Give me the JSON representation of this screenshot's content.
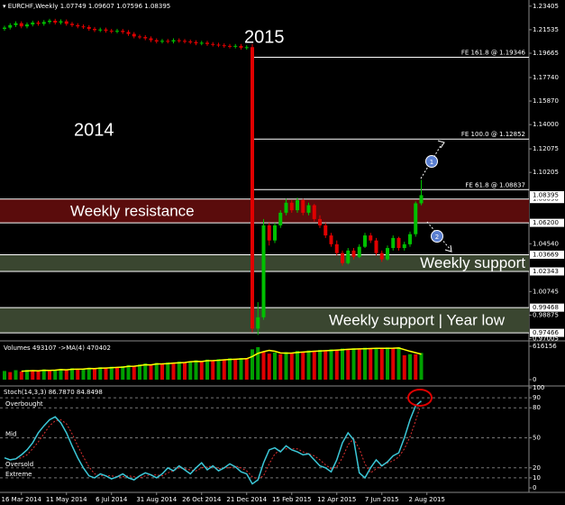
{
  "chart_data": [
    {
      "type": "candlestick",
      "title": "EURCHF,Weekly",
      "up_color": "#00c000",
      "down_color": "#e00000",
      "ylim": [
        0.969,
        1.2375
      ],
      "yticks": [
        1.23405,
        1.21535,
        1.19665,
        {
          "value": 1.1774,
          "label": "1.17740"
        },
        {
          "value": 1.1587,
          "label": "1.15870"
        },
        {
          "value": 1.14,
          "label": "1.14000"
        },
        1.12075,
        1.10205,
        {
          "value": 1.0454,
          "label": "1.04540"
        },
        1.00745,
        0.98875,
        0.97005
      ],
      "levels": [
        {
          "value": 1.0809,
          "label": "1.08090"
        },
        {
          "value": 1.062,
          "label": "1.06200"
        },
        1.03669,
        1.02343,
        0.99468,
        0.97466
      ],
      "fibo": [
        {
          "label": "FE 161.8 @ 1.19346",
          "value": 1.19346
        },
        {
          "label": "FE 100.0 @ 1.12852",
          "value": 1.12852
        },
        {
          "label": "FE 61.8 @ 1.08837",
          "value": 1.08837
        }
      ],
      "zones": [
        {
          "label": "Weekly resistance",
          "from": 1.062,
          "to": 1.0809,
          "color": "#5a0c0c"
        },
        {
          "label": "Weekly support",
          "from": 1.02343,
          "to": 1.03669,
          "color": "#3a4630"
        },
        {
          "label": "Weekly support | Year low",
          "from": 0.97466,
          "to": 0.99468,
          "color": "#3a4630"
        }
      ],
      "annotations": [
        "2014",
        "2015",
        "1",
        "2"
      ],
      "ohlc": [
        [
          1.216,
          1.2185,
          1.2145,
          1.217
        ],
        [
          1.217,
          1.2205,
          1.2155,
          1.219
        ],
        [
          1.219,
          1.222,
          1.2175,
          1.2205
        ],
        [
          1.2205,
          1.222,
          1.2165,
          1.218
        ],
        [
          1.218,
          1.221,
          1.2165,
          1.2195
        ],
        [
          1.2195,
          1.2225,
          1.218,
          1.221
        ],
        [
          1.221,
          1.2225,
          1.2185,
          1.22
        ],
        [
          1.22,
          1.223,
          1.2185,
          1.2215
        ],
        [
          1.2215,
          1.224,
          1.22,
          1.2225
        ],
        [
          1.2225,
          1.224,
          1.2195,
          1.221
        ],
        [
          1.221,
          1.2235,
          1.2195,
          1.222
        ],
        [
          1.222,
          1.2235,
          1.2185,
          1.22
        ],
        [
          1.22,
          1.2215,
          1.2175,
          1.219
        ],
        [
          1.219,
          1.2205,
          1.2165,
          1.218
        ],
        [
          1.218,
          1.2195,
          1.216,
          1.2175
        ],
        [
          1.2175,
          1.219,
          1.2145,
          1.216
        ],
        [
          1.216,
          1.2175,
          1.2135,
          1.215
        ],
        [
          1.215,
          1.217,
          1.2135,
          1.2155
        ],
        [
          1.2155,
          1.217,
          1.213,
          1.2145
        ],
        [
          1.2145,
          1.216,
          1.2125,
          1.214
        ],
        [
          1.214,
          1.216,
          1.2125,
          1.2145
        ],
        [
          1.2145,
          1.216,
          1.212,
          1.2135
        ],
        [
          1.2135,
          1.215,
          1.2105,
          1.212
        ],
        [
          1.212,
          1.2135,
          1.2085,
          1.21
        ],
        [
          1.21,
          1.2115,
          1.208,
          1.2095
        ],
        [
          1.2095,
          1.211,
          1.207,
          1.2085
        ],
        [
          1.2085,
          1.21,
          1.2055,
          1.207
        ],
        [
          1.207,
          1.2085,
          1.2045,
          1.206
        ],
        [
          1.206,
          1.208,
          1.2045,
          1.2065
        ],
        [
          1.2065,
          1.208,
          1.2045,
          1.206
        ],
        [
          1.206,
          1.2085,
          1.2045,
          1.207
        ],
        [
          1.207,
          1.2085,
          1.205,
          1.2065
        ],
        [
          1.2065,
          1.208,
          1.2045,
          1.206
        ],
        [
          1.206,
          1.2075,
          1.204,
          1.2055
        ],
        [
          1.2055,
          1.207,
          1.203,
          1.2045
        ],
        [
          1.2045,
          1.2065,
          1.203,
          1.205
        ],
        [
          1.205,
          1.2065,
          1.2025,
          1.204
        ],
        [
          1.204,
          1.2055,
          1.202,
          1.2035
        ],
        [
          1.2035,
          1.205,
          1.2015,
          1.203
        ],
        [
          1.203,
          1.2045,
          1.201,
          1.2025
        ],
        [
          1.2025,
          1.204,
          1.2005,
          1.202
        ],
        [
          1.202,
          1.204,
          1.2005,
          1.2025
        ],
        [
          1.2025,
          1.204,
          1.1995,
          1.201
        ],
        [
          1.201,
          1.203,
          1.1995,
          1.2015
        ],
        [
          1.2015,
          1.204,
          0.975,
          0.978
        ],
        [
          0.978,
          0.999,
          0.973,
          0.987
        ],
        [
          0.987,
          1.065,
          0.985,
          1.06
        ],
        [
          1.06,
          1.062,
          1.044,
          1.048
        ],
        [
          1.048,
          1.062,
          1.046,
          1.06
        ],
        [
          1.06,
          1.072,
          1.058,
          1.07
        ],
        [
          1.07,
          1.081,
          1.068,
          1.078
        ],
        [
          1.078,
          1.08,
          1.07,
          1.072
        ],
        [
          1.072,
          1.082,
          1.07,
          1.08
        ],
        [
          1.08,
          1.081,
          1.068,
          1.07
        ],
        [
          1.07,
          1.078,
          1.068,
          1.076
        ],
        [
          1.076,
          1.077,
          1.063,
          1.065
        ],
        [
          1.065,
          1.068,
          1.058,
          1.06
        ],
        [
          1.06,
          1.062,
          1.05,
          1.052
        ],
        [
          1.052,
          1.054,
          1.043,
          1.045
        ],
        [
          1.045,
          1.048,
          1.036,
          1.038
        ],
        [
          1.038,
          1.04,
          1.028,
          1.03
        ],
        [
          1.03,
          1.042,
          1.029,
          1.04
        ],
        [
          1.04,
          1.042,
          1.033,
          1.035
        ],
        [
          1.035,
          1.045,
          1.034,
          1.043
        ],
        [
          1.043,
          1.054,
          1.042,
          1.052
        ],
        [
          1.052,
          1.054,
          1.046,
          1.048
        ],
        [
          1.048,
          1.05,
          1.036,
          1.038
        ],
        [
          1.038,
          1.04,
          1.031,
          1.033
        ],
        [
          1.033,
          1.044,
          1.032,
          1.042
        ],
        [
          1.042,
          1.052,
          1.04,
          1.05
        ],
        [
          1.05,
          1.051,
          1.04,
          1.042
        ],
        [
          1.042,
          1.047,
          1.04,
          1.045
        ],
        [
          1.045,
          1.055,
          1.043,
          1.053
        ],
        [
          1.053,
          1.079,
          1.051,
          1.0775
        ],
        [
          1.07749,
          1.09607,
          1.07596,
          1.08395
        ]
      ]
    },
    {
      "type": "bar",
      "title": "Volumes 493107 ->MA(4) 470402",
      "color_up": "#00a000",
      "color_down": "#e00000",
      "ma_color": "#ffff00",
      "ylim": [
        0,
        616156
      ],
      "yticks": [
        0,
        616156
      ],
      "values": [
        160000,
        140000,
        175000,
        150000,
        180000,
        165000,
        155000,
        190000,
        170000,
        185000,
        200000,
        175000,
        210000,
        190000,
        205000,
        220000,
        195000,
        230000,
        215000,
        240000,
        225000,
        250000,
        270000,
        245000,
        280000,
        300000,
        265000,
        310000,
        290000,
        320000,
        300000,
        335000,
        315000,
        340000,
        360000,
        330000,
        370000,
        350000,
        380000,
        365000,
        395000,
        370000,
        400000,
        385000,
        560000,
        600000,
        520000,
        480000,
        500000,
        470000,
        510000,
        490000,
        530000,
        505000,
        540000,
        520000,
        550000,
        530000,
        560000,
        545000,
        575000,
        555000,
        580000,
        560000,
        590000,
        570000,
        585000,
        565000,
        595000,
        575000,
        600000,
        450000,
        470000,
        468000,
        493107
      ],
      "ma": [
        null,
        null,
        null,
        156000,
        161000,
        167000,
        162000,
        172000,
        170000,
        175000,
        186000,
        182000,
        192000,
        194000,
        195000,
        206000,
        205000,
        212000,
        215000,
        220000,
        227000,
        232000,
        246000,
        247000,
        261000,
        274000,
        272000,
        289000,
        291000,
        296000,
        305000,
        311000,
        317000,
        330000,
        338000,
        336000,
        350000,
        352000,
        357000,
        366000,
        372000,
        377000,
        382000,
        387000,
        428000,
        486000,
        516000,
        540000,
        525000,
        493000,
        490000,
        492000,
        502000,
        509000,
        516000,
        524000,
        529000,
        535000,
        540000,
        546000,
        552000,
        559000,
        564000,
        568000,
        571000,
        575000,
        578000,
        578000,
        579000,
        580000,
        584000,
        555000,
        524000,
        497000,
        470402
      ]
    },
    {
      "type": "line",
      "title": "Stoch(14,3,3) 86.7870 84.8498",
      "k_color": "#3cc8d8",
      "d_color": "#e03030",
      "ylim": [
        0,
        100
      ],
      "yticks": [
        0,
        10,
        20,
        50,
        80,
        90,
        100
      ],
      "levels": [
        {
          "value": 90
        },
        {
          "value": 80,
          "label": "Overbought"
        },
        {
          "value": 50,
          "label": "Mid"
        },
        {
          "value": 20,
          "label": "Oversold"
        },
        {
          "value": 10,
          "label": "Extreme"
        }
      ],
      "xticks": [
        {
          "value": 3,
          "label": "16 Mar 2014"
        },
        {
          "value": 11,
          "label": "11 May 2014"
        },
        {
          "value": 19,
          "label": "6 Jul 2014"
        },
        {
          "value": 27,
          "label": "31 Aug 2014"
        },
        {
          "value": 35,
          "label": "26 Oct 2014"
        },
        {
          "value": 43,
          "label": "21 Dec 2014"
        },
        {
          "value": 51,
          "label": "15 Feb 2015"
        },
        {
          "value": 59,
          "label": "12 Apr 2015"
        },
        {
          "value": 67,
          "label": "7 Jun 2015"
        },
        {
          "value": 75,
          "label": "2 Aug 2015"
        }
      ],
      "k": [
        30,
        28,
        29,
        33,
        38,
        45,
        55,
        62,
        68,
        71,
        65,
        55,
        42,
        30,
        20,
        12,
        10,
        14,
        12,
        9,
        11,
        14,
        10,
        8,
        12,
        15,
        13,
        10,
        14,
        20,
        17,
        22,
        18,
        14,
        20,
        25,
        18,
        22,
        17,
        20,
        24,
        21,
        16,
        14,
        4,
        8,
        25,
        38,
        40,
        36,
        42,
        38,
        36,
        33,
        34,
        28,
        22,
        20,
        16,
        28,
        45,
        55,
        48,
        15,
        10,
        20,
        28,
        22,
        26,
        32,
        35,
        50,
        68,
        82,
        86.787
      ],
      "d": [
        null,
        null,
        29,
        30,
        33,
        39,
        46,
        54,
        62,
        67,
        68,
        64,
        54,
        42,
        31,
        21,
        14,
        12,
        12,
        12,
        11,
        11,
        12,
        11,
        10,
        12,
        13,
        13,
        12,
        15,
        17,
        20,
        19,
        18,
        17,
        20,
        21,
        22,
        19,
        20,
        20,
        22,
        20,
        17,
        11,
        9,
        12,
        24,
        34,
        38,
        39,
        39,
        39,
        36,
        34,
        32,
        28,
        23,
        19,
        21,
        30,
        43,
        49,
        39,
        24,
        15,
        19,
        23,
        25,
        27,
        31,
        39,
        51,
        67,
        84.8498
      ]
    }
  ]
}
